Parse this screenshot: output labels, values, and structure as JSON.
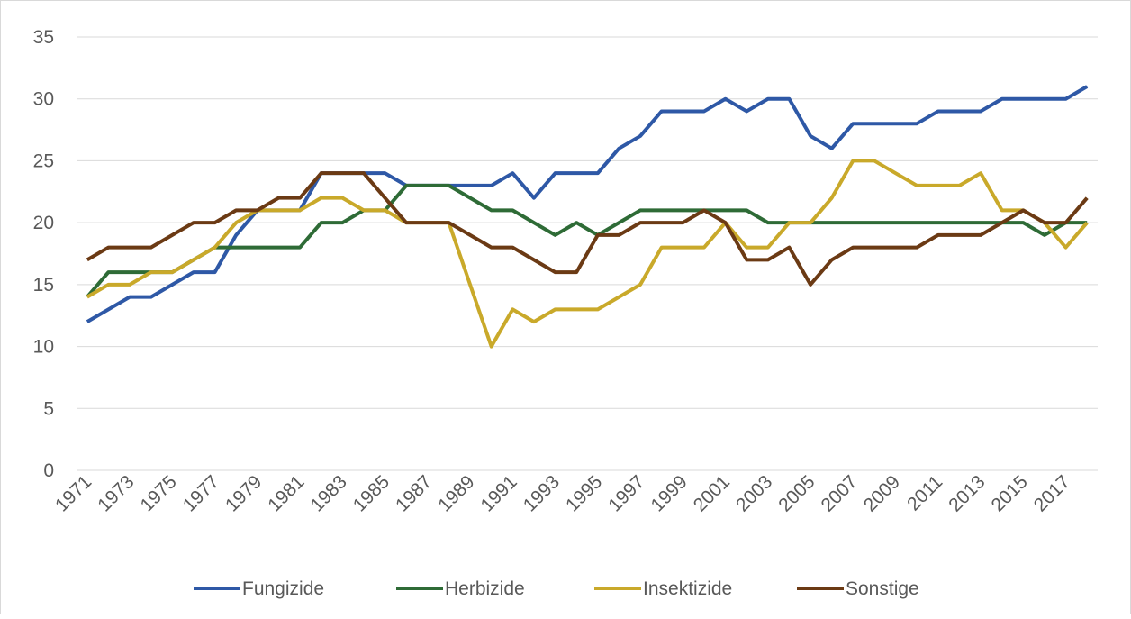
{
  "chart_data": {
    "type": "line",
    "categories": [
      "1971",
      null,
      "1973",
      null,
      "1975",
      null,
      "1977",
      null,
      "1979",
      null,
      "1981",
      null,
      "1983",
      null,
      "1985",
      null,
      "1987",
      null,
      "1989",
      null,
      "1991",
      null,
      "1993",
      null,
      "1995",
      null,
      "1997",
      null,
      "1999",
      null,
      "2001",
      null,
      "2003",
      null,
      "2005",
      null,
      "2007",
      null,
      "2009",
      null,
      "2011",
      null,
      "2013",
      null,
      "2015",
      null,
      "2017",
      null
    ],
    "series": [
      {
        "name": "Fungizide",
        "color": "#2e58a6",
        "values": [
          12,
          13,
          14,
          14,
          15,
          16,
          16,
          19,
          21,
          21,
          21,
          24,
          24,
          24,
          24,
          23,
          23,
          23,
          23,
          23,
          24,
          22,
          24,
          24,
          24,
          26,
          27,
          29,
          29,
          29,
          30,
          29,
          30,
          30,
          27,
          26,
          28,
          28,
          28,
          28,
          29,
          29,
          29,
          30,
          30,
          30,
          30,
          31
        ]
      },
      {
        "name": "Herbizide",
        "color": "#2e6b36",
        "values": [
          14,
          16,
          16,
          16,
          16,
          17,
          18,
          18,
          18,
          18,
          18,
          20,
          20,
          21,
          21,
          23,
          23,
          23,
          22,
          21,
          21,
          20,
          19,
          20,
          19,
          20,
          21,
          21,
          21,
          21,
          21,
          21,
          20,
          20,
          20,
          20,
          20,
          20,
          20,
          20,
          20,
          20,
          20,
          20,
          20,
          19,
          20,
          20
        ]
      },
      {
        "name": "Insektizide",
        "color": "#c9a92a",
        "values": [
          14,
          15,
          15,
          16,
          16,
          17,
          18,
          20,
          21,
          21,
          21,
          22,
          22,
          21,
          21,
          20,
          20,
          20,
          15,
          10,
          13,
          12,
          13,
          13,
          13,
          14,
          15,
          18,
          18,
          18,
          20,
          18,
          18,
          20,
          20,
          22,
          25,
          25,
          24,
          23,
          23,
          23,
          24,
          21,
          21,
          20,
          18,
          20
        ]
      },
      {
        "name": "Sonstige",
        "color": "#6b3a14",
        "values": [
          17,
          18,
          18,
          18,
          19,
          20,
          20,
          21,
          21,
          22,
          22,
          24,
          24,
          24,
          22,
          20,
          20,
          20,
          19,
          18,
          18,
          17,
          16,
          16,
          19,
          19,
          20,
          20,
          20,
          21,
          20,
          17,
          17,
          18,
          15,
          17,
          18,
          18,
          18,
          18,
          19,
          19,
          19,
          20,
          21,
          20,
          20,
          22
        ]
      }
    ],
    "ylim": [
      0,
      35
    ],
    "yticks": [
      0,
      5,
      10,
      15,
      20,
      25,
      30,
      35
    ],
    "grid": true,
    "legend": "bottom"
  }
}
